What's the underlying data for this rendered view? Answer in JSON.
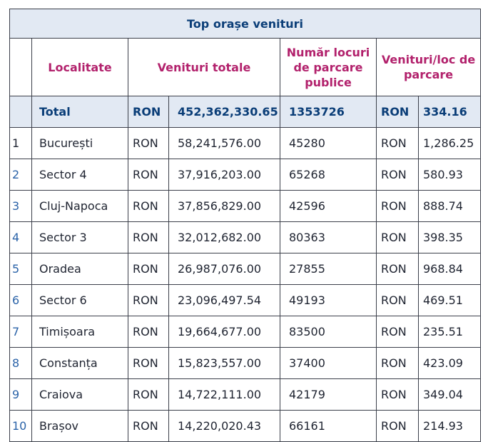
{
  "table": {
    "title": "Top orașe venituri",
    "headers": {
      "localitate": "Localitate",
      "venituri_totale": "Venituri totale",
      "numar_locuri": "Număr locuri de parcare publice",
      "venituri_per_loc": "Venituri/loc de parcare"
    },
    "total": {
      "label": "Total",
      "currency1": "RON",
      "revenue": "452,362,330.65",
      "spots": "1353726",
      "currency2": "RON",
      "per_spot": "334.16"
    },
    "rows": [
      {
        "rank": "1",
        "city": "București",
        "currency1": "RON",
        "revenue": "58,241,576.00",
        "spots": "45280",
        "currency2": "RON",
        "per_spot": "1,286.25"
      },
      {
        "rank": "2",
        "city": "Sector 4",
        "currency1": "RON",
        "revenue": "37,916,203.00",
        "spots": "65268",
        "currency2": "RON",
        "per_spot": "580.93"
      },
      {
        "rank": "3",
        "city": "Cluj-Napoca",
        "currency1": "RON",
        "revenue": "37,856,829.00",
        "spots": "42596",
        "currency2": "RON",
        "per_spot": "888.74"
      },
      {
        "rank": "4",
        "city": "Sector 3",
        "currency1": "RON",
        "revenue": "32,012,682.00",
        "spots": "80363",
        "currency2": "RON",
        "per_spot": "398.35"
      },
      {
        "rank": "5",
        "city": "Oradea",
        "currency1": "RON",
        "revenue": "26,987,076.00",
        "spots": "27855",
        "currency2": "RON",
        "per_spot": "968.84"
      },
      {
        "rank": "6",
        "city": "Sector 6",
        "currency1": "RON",
        "revenue": "23,096,497.54",
        "spots": "49193",
        "currency2": "RON",
        "per_spot": "469.51"
      },
      {
        "rank": "7",
        "city": "Timișoara",
        "currency1": "RON",
        "revenue": "19,664,677.00",
        "spots": "83500",
        "currency2": "RON",
        "per_spot": "235.51"
      },
      {
        "rank": "8",
        "city": "Constanța",
        "currency1": "RON",
        "revenue": "15,823,557.00",
        "spots": "37400",
        "currency2": "RON",
        "per_spot": "423.09"
      },
      {
        "rank": "9",
        "city": "Craiova",
        "currency1": "RON",
        "revenue": "14,722,111.00",
        "spots": "42179",
        "currency2": "RON",
        "per_spot": "349.04"
      },
      {
        "rank": "10",
        "city": "Brașov",
        "currency1": "RON",
        "revenue": "14,220,020.43",
        "spots": "66161",
        "currency2": "RON",
        "per_spot": "214.93"
      }
    ]
  },
  "colors": {
    "title_text": "#0b3e78",
    "header_text": "#b2216c",
    "band_fill": "#e2e9f3",
    "rank_text": "#2b63a8"
  }
}
